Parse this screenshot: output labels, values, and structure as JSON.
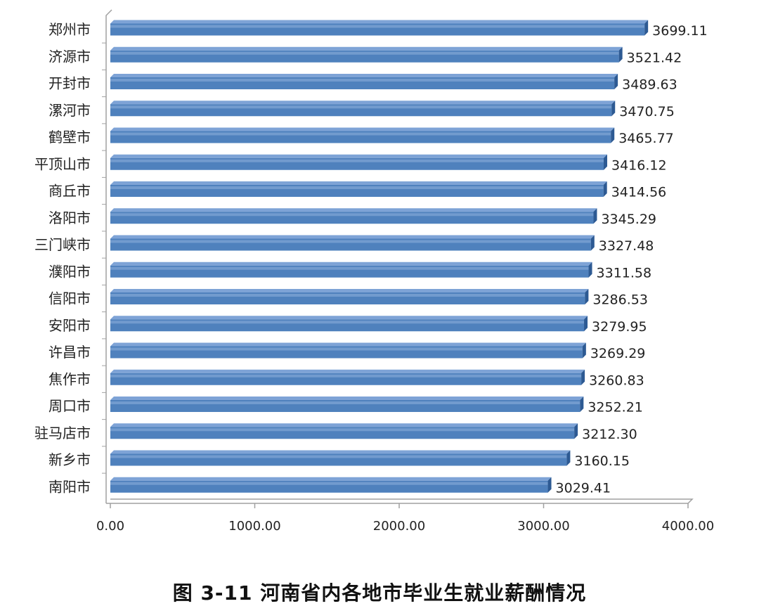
{
  "caption": "图 3-11   河南省内各地市毕业生就业薪酬情况",
  "colors": {
    "bar_fill": "#4f81bd",
    "bar_top": "#7ea3d6",
    "bar_side": "#2d5a93",
    "axis": "#a0a0a0",
    "text": "#222222"
  },
  "chart_data": {
    "type": "bar",
    "orientation": "horizontal",
    "style": "3d",
    "categories": [
      "郑州市",
      "济源市",
      "开封市",
      "漯河市",
      "鹤壁市",
      "平顶山市",
      "商丘市",
      "洛阳市",
      "三门峡市",
      "濮阳市",
      "信阳市",
      "安阳市",
      "许昌市",
      "焦作市",
      "周口市",
      "驻马店市",
      "新乡市",
      "南阳市"
    ],
    "values": [
      3699.11,
      3521.42,
      3489.63,
      3470.75,
      3465.77,
      3416.12,
      3414.56,
      3345.29,
      3327.48,
      3311.58,
      3286.53,
      3279.95,
      3269.29,
      3260.83,
      3252.21,
      3212.3,
      3160.15,
      3029.41
    ],
    "value_labels": [
      "3699.11",
      "3521.42",
      "3489.63",
      "3470.75",
      "3465.77",
      "3416.12",
      "3414.56",
      "3345.29",
      "3327.48",
      "3311.58",
      "3286.53",
      "3279.95",
      "3269.29",
      "3260.83",
      "3252.21",
      "3212.30",
      "3160.15",
      "3029.41"
    ],
    "xlim": [
      0,
      4000
    ],
    "x_ticks": [
      0,
      1000,
      2000,
      3000,
      4000
    ],
    "x_tick_labels": [
      "0.00",
      "1000.00",
      "2000.00",
      "3000.00",
      "4000.00"
    ],
    "grid": false,
    "legend": "none"
  }
}
